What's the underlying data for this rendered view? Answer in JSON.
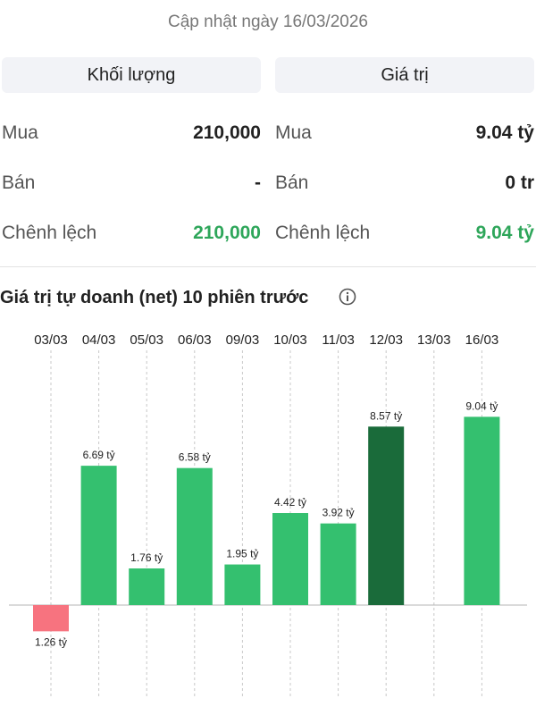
{
  "header": {
    "updated": "Cập nhật ngày 16/03/2026"
  },
  "columns": {
    "volume_title": "Khối lượng",
    "value_title": "Giá trị"
  },
  "volume": {
    "buy_label": "Mua",
    "buy_value": "210,000",
    "sell_label": "Bán",
    "sell_value": "-",
    "diff_label": "Chênh lệch",
    "diff_value": "210,000"
  },
  "value": {
    "buy_label": "Mua",
    "buy_value": "9.04 tỷ",
    "sell_label": "Bán",
    "sell_value": "0 tr",
    "diff_label": "Chênh lệch",
    "diff_value": "9.04 tỷ"
  },
  "colors": {
    "positive": "#34c06f",
    "highlight": "#1a6b3a",
    "negative": "#f7737f",
    "positive_text": "#2ea65a"
  },
  "chart_data": {
    "type": "bar",
    "title": "Giá trị tự doanh (net) 10 phiên trước",
    "categories": [
      "03/03",
      "04/03",
      "05/03",
      "06/03",
      "09/03",
      "10/03",
      "11/03",
      "12/03",
      "13/03",
      "16/03"
    ],
    "values": [
      -1.26,
      6.69,
      1.76,
      6.58,
      1.95,
      4.42,
      3.92,
      8.57,
      null,
      9.04
    ],
    "labels": [
      "1.26 tỷ",
      "6.69 tỷ",
      "1.76 tỷ",
      "6.58 tỷ",
      "1.95 tỷ",
      "4.42 tỷ",
      "3.92 tỷ",
      "8.57 tỷ",
      "",
      "9.04 tỷ"
    ],
    "highlight_index": 7,
    "unit": "tỷ",
    "grid": "vertical dashed"
  }
}
